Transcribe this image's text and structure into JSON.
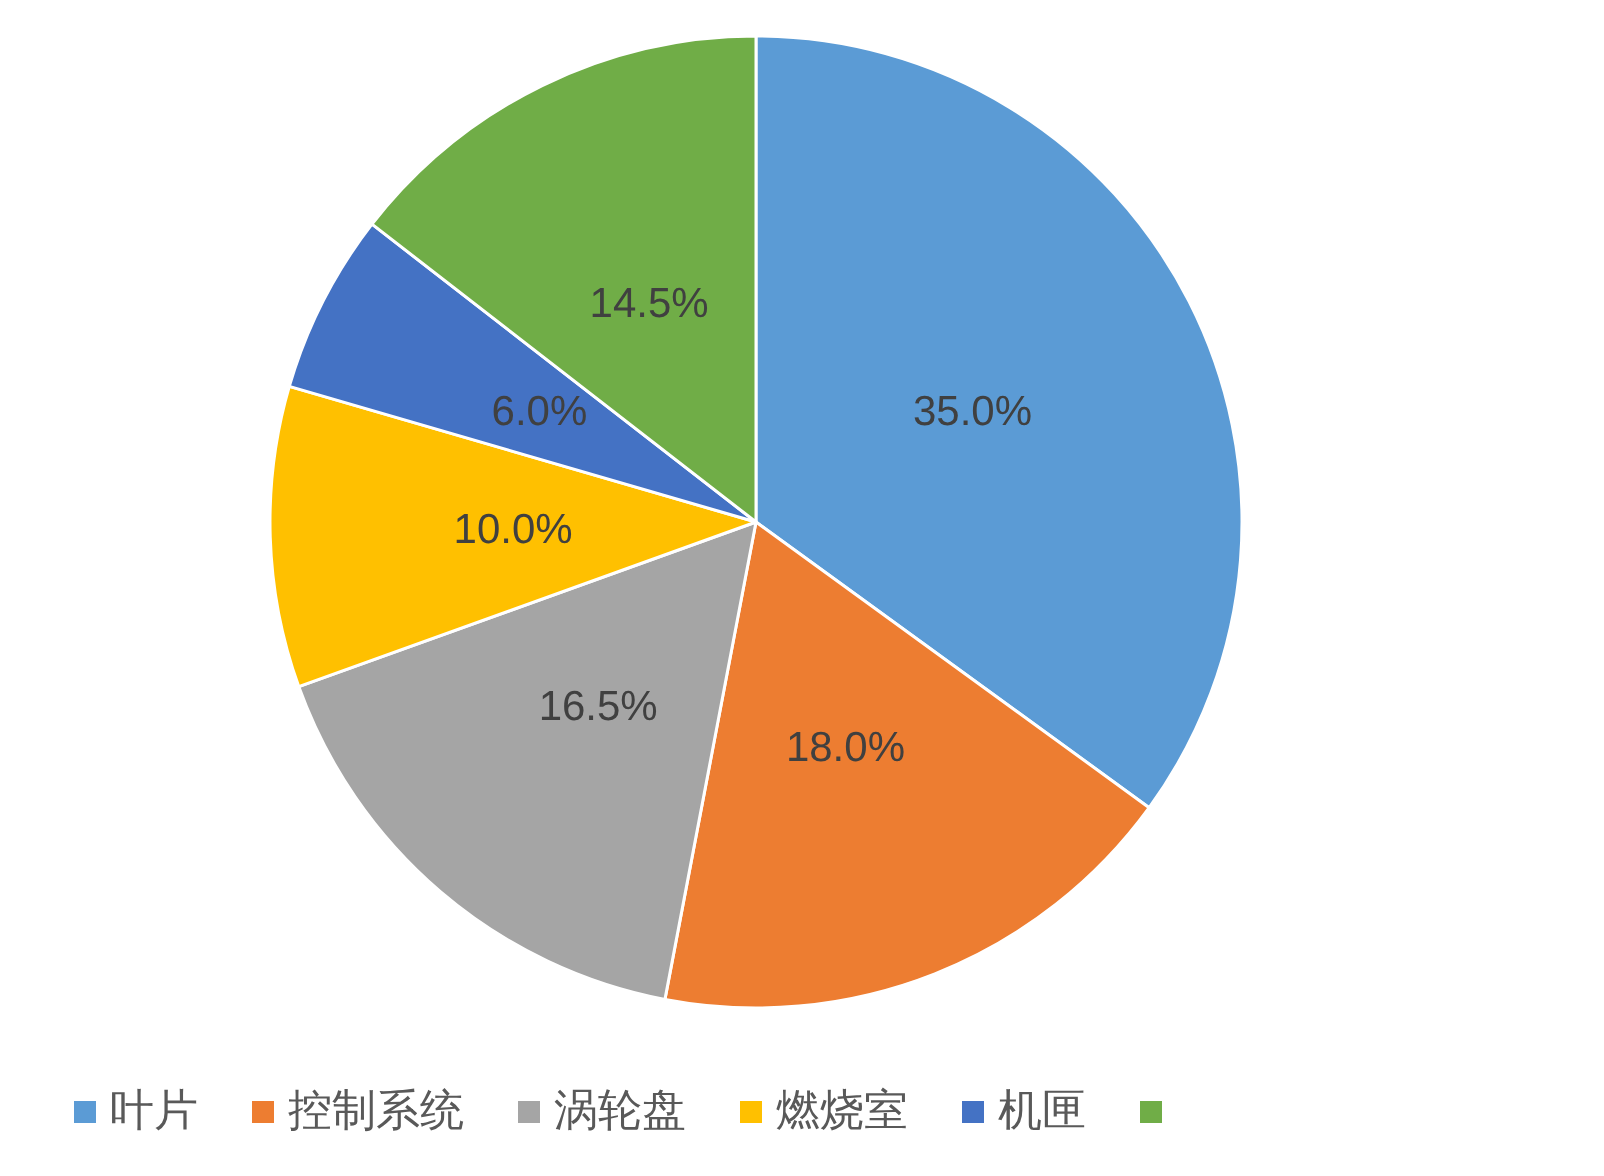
{
  "chart_data": {
    "type": "pie",
    "categories": [
      "叶片",
      "控制系统",
      "涡轮盘",
      "燃烧室",
      "机匣",
      null
    ],
    "values": [
      35,
      18,
      16.5,
      10,
      6,
      14.5
    ],
    "value_labels": [
      "35.0%",
      "18.0%",
      "16.5%",
      "10.0%",
      "6.0%",
      "14.5%"
    ],
    "colors": [
      "#5b9bd5",
      "#ed7d31",
      "#a5a5a5",
      "#ffc000",
      "#4472c4",
      "#70ad47"
    ],
    "legend": "bottom"
  }
}
